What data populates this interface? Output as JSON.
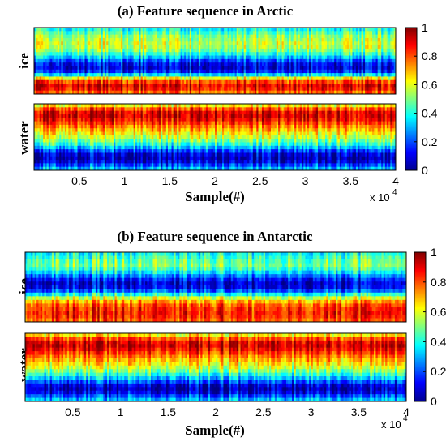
{
  "chart_data": [
    {
      "type": "heatmap",
      "title": "(a) Feature sequence in Arctic",
      "rows": [
        "ice",
        "water"
      ],
      "xlabel": "Sample(#)",
      "x_scale_label": "x 10",
      "x_scale_exponent": "4",
      "xlim": [
        0,
        40000
      ],
      "xticks": [
        0.5,
        1,
        1.5,
        2,
        2.5,
        3,
        3.5,
        4
      ],
      "colorbar": {
        "colormap": "jet",
        "range": [
          0,
          1
        ],
        "ticks": [
          "0",
          "0.2",
          "0.4",
          "0.6",
          "0.8",
          "1"
        ]
      },
      "profiles": {
        "ice": [
          0.4,
          0.46,
          0.52,
          0.55,
          0.58,
          0.56,
          0.5,
          0.42,
          0.33,
          0.22,
          0.13,
          0.1,
          0.16,
          0.35,
          0.62,
          0.82,
          0.9,
          0.87,
          0.78
        ],
        "water": [
          0.65,
          0.8,
          0.9,
          0.92,
          0.88,
          0.82,
          0.76,
          0.7,
          0.64,
          0.58,
          0.5,
          0.42,
          0.32,
          0.2,
          0.1,
          0.06,
          0.1,
          0.2,
          0.3
        ]
      }
    },
    {
      "type": "heatmap",
      "title": "(b) Feature sequence in Antarctic",
      "rows": [
        "ice",
        "water"
      ],
      "xlabel": "Sample(#)",
      "x_scale_label": "x 10",
      "x_scale_exponent": "4",
      "xlim": [
        0,
        40000
      ],
      "xticks": [
        0.5,
        1,
        1.5,
        2,
        2.5,
        3,
        3.5,
        4
      ],
      "colorbar": {
        "colormap": "jet",
        "range": [
          0,
          1
        ],
        "ticks": [
          "0",
          "0.2",
          "0.4",
          "0.6",
          "0.8",
          "1"
        ]
      },
      "profiles": {
        "ice": [
          0.4,
          0.44,
          0.48,
          0.5,
          0.45,
          0.36,
          0.26,
          0.16,
          0.1,
          0.12,
          0.22,
          0.4,
          0.58,
          0.72,
          0.8,
          0.84,
          0.86,
          0.84,
          0.8
        ],
        "water": [
          0.65,
          0.8,
          0.9,
          0.92,
          0.88,
          0.82,
          0.76,
          0.7,
          0.64,
          0.58,
          0.5,
          0.42,
          0.32,
          0.2,
          0.1,
          0.06,
          0.1,
          0.2,
          0.3
        ]
      }
    }
  ]
}
